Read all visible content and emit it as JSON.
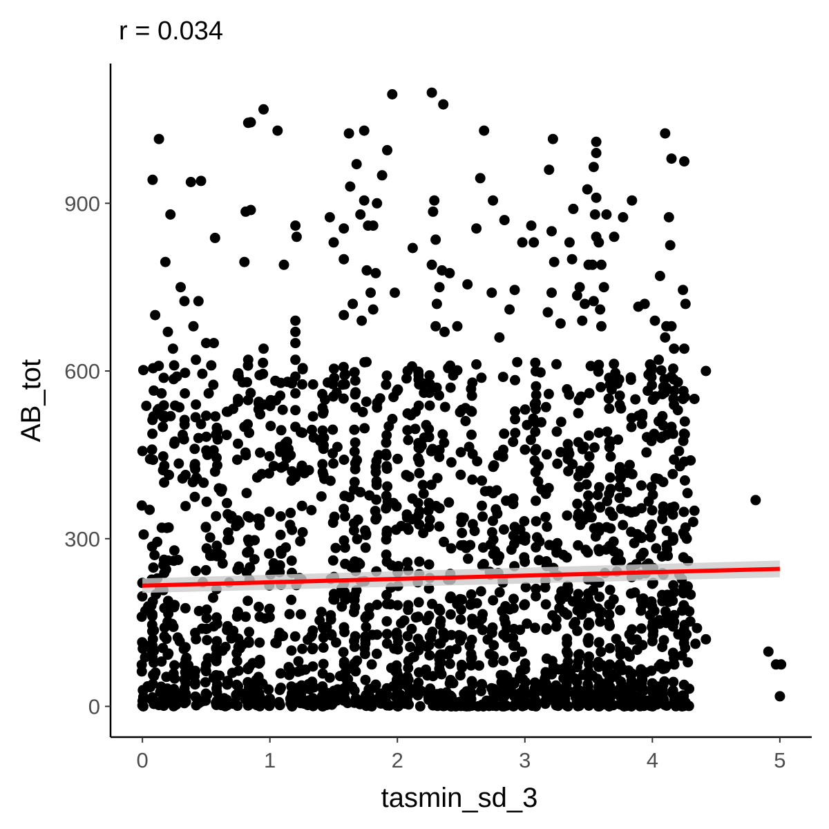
{
  "chart_data": {
    "type": "scatter",
    "title": "r = 0.034",
    "xlabel": "tasmin_sd_3",
    "ylabel": "AB_tot",
    "xlim": [
      -0.25,
      5.25
    ],
    "ylim": [
      -55,
      1150
    ],
    "x_ticks": [
      0,
      1,
      2,
      3,
      4,
      5
    ],
    "x_tick_labels": [
      "0",
      "1",
      "2",
      "3",
      "4",
      "5"
    ],
    "y_ticks": [
      0,
      300,
      600,
      900
    ],
    "y_tick_labels": [
      "0",
      "300",
      "600",
      "900"
    ],
    "grid": false,
    "legend": "none",
    "trend_line": {
      "x": [
        0,
        5
      ],
      "y": [
        216,
        246
      ],
      "color": "#ff0000",
      "ci_color": "#cccccc",
      "ci_halfwidth": [
        13,
        15
      ]
    },
    "point_color": "#000000",
    "points_estimated_count": 4000,
    "points": [
      [
        0.13,
        1015
      ],
      [
        0.08,
        942
      ],
      [
        0.22,
        880
      ],
      [
        0.18,
        795
      ],
      [
        0.3,
        750
      ],
      [
        0.33,
        725
      ],
      [
        0.1,
        700
      ],
      [
        0.2,
        670
      ],
      [
        0.24,
        640
      ],
      [
        0.27,
        590
      ],
      [
        0.15,
        560
      ],
      [
        0.12,
        530
      ],
      [
        0.16,
        500
      ],
      [
        0.25,
        470
      ],
      [
        0.38,
        938
      ],
      [
        0.46,
        940
      ],
      [
        0.57,
        838
      ],
      [
        0.81,
        885
      ],
      [
        0.8,
        795
      ],
      [
        0.85,
        1045
      ],
      [
        0.56,
        650
      ],
      [
        0.4,
        680
      ],
      [
        0.44,
        725
      ],
      [
        0.5,
        650
      ],
      [
        0.42,
        620
      ],
      [
        0.47,
        595
      ],
      [
        0.54,
        610
      ],
      [
        0.52,
        560
      ],
      [
        0.42,
        540
      ],
      [
        0.5,
        520
      ],
      [
        0.46,
        505
      ],
      [
        0.44,
        480
      ],
      [
        0.51,
        450
      ],
      [
        0.41,
        430
      ],
      [
        0.57,
        420
      ],
      [
        0.48,
        400
      ],
      [
        0.6,
        390
      ],
      [
        1.06,
        1030
      ],
      [
        0.83,
        1044
      ],
      [
        0.85,
        888
      ],
      [
        0.95,
        1068
      ],
      [
        1.11,
        790
      ],
      [
        0.95,
        640
      ],
      [
        0.83,
        620
      ],
      [
        0.82,
        580
      ],
      [
        0.75,
        550
      ],
      [
        0.95,
        540
      ],
      [
        0.8,
        500
      ],
      [
        0.75,
        470
      ],
      [
        1.2,
        860
      ],
      [
        1.21,
        840
      ],
      [
        1.2,
        690
      ],
      [
        1.2,
        670
      ],
      [
        1.2,
        650
      ],
      [
        1.2,
        620
      ],
      [
        1.2,
        590
      ],
      [
        1.2,
        560
      ],
      [
        1.2,
        530
      ],
      [
        1.2,
        500
      ],
      [
        1.12,
        470
      ],
      [
        1.11,
        430
      ],
      [
        1.2,
        410
      ],
      [
        1.03,
        430
      ],
      [
        1.96,
        1095
      ],
      [
        2.27,
        1098
      ],
      [
        2.36,
        1077
      ],
      [
        1.62,
        1025
      ],
      [
        1.74,
        1030
      ],
      [
        1.92,
        995
      ],
      [
        1.68,
        970
      ],
      [
        1.63,
        930
      ],
      [
        1.74,
        905
      ],
      [
        1.71,
        880
      ],
      [
        1.84,
        900
      ],
      [
        1.88,
        950
      ],
      [
        1.77,
        860
      ],
      [
        1.58,
        855
      ],
      [
        1.47,
        875
      ],
      [
        1.5,
        830
      ],
      [
        1.58,
        800
      ],
      [
        1.81,
        860
      ],
      [
        1.76,
        780
      ],
      [
        1.83,
        775
      ],
      [
        1.79,
        740
      ],
      [
        1.81,
        710
      ],
      [
        1.72,
        690
      ],
      [
        1.58,
        700
      ],
      [
        1.65,
        720
      ],
      [
        1.98,
        740
      ],
      [
        2.12,
        820
      ],
      [
        2.28,
        885
      ],
      [
        2.29,
        905
      ],
      [
        2.3,
        835
      ],
      [
        2.27,
        790
      ],
      [
        2.35,
        780
      ],
      [
        2.41,
        775
      ],
      [
        2.33,
        750
      ],
      [
        2.31,
        720
      ],
      [
        2.3,
        680
      ],
      [
        2.37,
        670
      ],
      [
        2.47,
        680
      ],
      [
        2.55,
        755
      ],
      [
        2.62,
        855
      ],
      [
        2.65,
        945
      ],
      [
        2.68,
        1030
      ],
      [
        2.75,
        905
      ],
      [
        2.84,
        870
      ],
      [
        2.92,
        745
      ],
      [
        2.98,
        830
      ],
      [
        3.05,
        860
      ],
      [
        3.07,
        830
      ],
      [
        2.74,
        740
      ],
      [
        2.88,
        710
      ],
      [
        2.8,
        660
      ],
      [
        3.22,
        1015
      ],
      [
        3.19,
        960
      ],
      [
        3.21,
        850
      ],
      [
        3.23,
        795
      ],
      [
        3.21,
        740
      ],
      [
        3.18,
        705
      ],
      [
        3.28,
        685
      ],
      [
        3.35,
        830
      ],
      [
        3.38,
        890
      ],
      [
        3.37,
        800
      ],
      [
        3.41,
        735
      ],
      [
        3.43,
        750
      ],
      [
        3.49,
        925
      ],
      [
        3.54,
        965
      ],
      [
        3.56,
        1010
      ],
      [
        3.56,
        990
      ],
      [
        3.56,
        910
      ],
      [
        3.55,
        880
      ],
      [
        3.56,
        840
      ],
      [
        3.58,
        830
      ],
      [
        3.5,
        790
      ],
      [
        3.53,
        790
      ],
      [
        3.6,
        790
      ],
      [
        3.62,
        750
      ],
      [
        3.59,
        710
      ],
      [
        3.54,
        725
      ],
      [
        3.64,
        880
      ],
      [
        3.7,
        840
      ],
      [
        3.77,
        875
      ],
      [
        3.84,
        905
      ],
      [
        3.47,
        720
      ],
      [
        3.6,
        680
      ],
      [
        3.45,
        690
      ],
      [
        4.1,
        1025
      ],
      [
        4.15,
        980
      ],
      [
        4.25,
        975
      ],
      [
        4.13,
        875
      ],
      [
        4.14,
        825
      ],
      [
        4.06,
        770
      ],
      [
        4.24,
        745
      ],
      [
        4.26,
        720
      ],
      [
        3.94,
        720
      ],
      [
        3.89,
        715
      ],
      [
        4.02,
        690
      ],
      [
        4.11,
        680
      ],
      [
        4.15,
        680
      ],
      [
        4.1,
        660
      ],
      [
        4.17,
        640
      ],
      [
        4.25,
        640
      ],
      [
        4.05,
        620
      ],
      [
        3.99,
        600
      ],
      [
        4.2,
        580
      ],
      [
        4.11,
        570
      ],
      [
        4.24,
        550
      ],
      [
        4.33,
        550
      ],
      [
        4.42,
        600
      ],
      [
        4.2,
        530
      ],
      [
        4.05,
        510
      ],
      [
        4.15,
        500
      ],
      [
        4.07,
        480
      ],
      [
        4.3,
        440
      ],
      [
        4.81,
        369
      ],
      [
        4.91,
        98
      ],
      [
        4.97,
        75
      ],
      [
        5.01,
        75
      ],
      [
        5.0,
        18
      ],
      [
        4.42,
        120
      ],
      [
        4.35,
        140
      ],
      [
        4.33,
        350
      ],
      [
        4.32,
        330
      ],
      [
        4.26,
        320
      ],
      [
        4.27,
        300
      ],
      [
        4.28,
        260
      ],
      [
        4.3,
        200
      ],
      [
        4.29,
        170
      ]
    ]
  }
}
